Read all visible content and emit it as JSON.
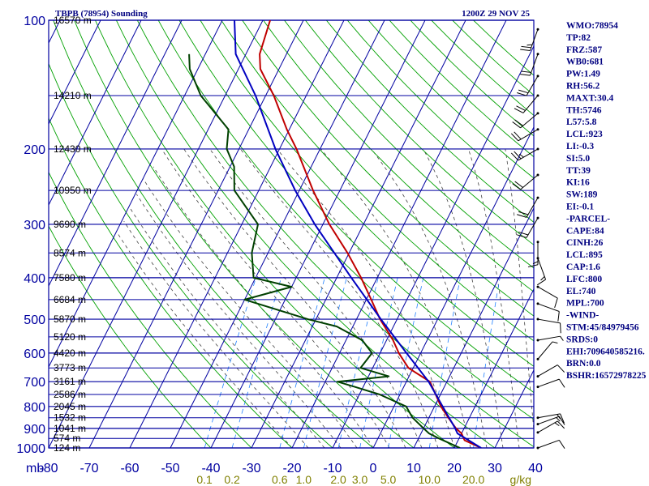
{
  "header": {
    "station_title": "TBPB (78954) Sounding",
    "valid_time": "1200Z 29 NOV 25"
  },
  "indices": [
    "WMO:78954",
    "TP:82",
    "FRZ:587",
    "WB0:681",
    "PW:1.49",
    "RH:56.2",
    "MAXT:30.4",
    "TH:5746",
    "L57:5.8",
    "LCL:923",
    "LI:-0.3",
    "SI:5.0",
    "TT:39",
    "KI:16",
    "SW:189",
    "EI:-0.1",
    "-PARCEL-",
    "CAPE:84",
    "CINH:26",
    "LCL:895",
    "CAP:1.6",
    "LFC:800",
    "EL:740",
    "MPL:700",
    "-WIND-",
    "STM:45/84979456",
    "SRDS:0",
    "EHI:709640585216.",
    "BRN:0.0",
    "BSHR:16572978225"
  ],
  "colors": {
    "isobar": "#0000a0",
    "isotherm": "#0000a0",
    "dry_adiabat": "#00a000",
    "moist_adiabat": "#404040",
    "mixing_ratio": "#2080ff",
    "temperature": "#c00000",
    "dewpoint": "#004000",
    "parcel": "#0000c0",
    "wind_barb": "#000000",
    "axis_text": "#0000a0",
    "mixing_text": "#808000",
    "index_text": "#000080"
  },
  "chart_data": {
    "type": "skew-t",
    "x_unit_label": "mb",
    "mixing_unit_label": "g/kg",
    "pressure_range": [
      1000,
      100
    ],
    "temperature_range": [
      -80,
      40
    ],
    "pressure_levels": [
      100,
      200,
      300,
      400,
      500,
      600,
      700,
      800,
      900,
      1000
    ],
    "pressure_tick_labels": [
      "100",
      "200",
      "300",
      "400",
      "500",
      "600",
      "700",
      "800",
      "900",
      "1000"
    ],
    "temperature_ticks": [
      -80,
      -70,
      -60,
      -50,
      -40,
      -30,
      -20,
      -10,
      0,
      10,
      20,
      30,
      40
    ],
    "temperature_tick_labels": [
      "-80",
      "-70",
      "-60",
      "-50",
      "-40",
      "-30",
      "-20",
      "-10",
      "0",
      "10",
      "20",
      "30",
      "40"
    ],
    "mixing_ratios": [
      0.1,
      0.2,
      0.6,
      1.0,
      2.0,
      3.0,
      5.0,
      10.0,
      20.0
    ],
    "mixing_ratio_labels": [
      "0.1",
      "0.2",
      "0.6",
      "1.0",
      "2.0",
      "3.0",
      "5.0",
      "10.0",
      "20.0"
    ],
    "height_labels": [
      {
        "p": 100,
        "text": "16570 m"
      },
      {
        "p": 150,
        "text": "14210 m"
      },
      {
        "p": 200,
        "text": "12430 m"
      },
      {
        "p": 250,
        "text": "10950 m"
      },
      {
        "p": 300,
        "text": "9690 m"
      },
      {
        "p": 350,
        "text": "8574 m"
      },
      {
        "p": 400,
        "text": "7580 m"
      },
      {
        "p": 450,
        "text": "6684 m"
      },
      {
        "p": 500,
        "text": "5870 m"
      },
      {
        "p": 550,
        "text": "5120 m"
      },
      {
        "p": 600,
        "text": "4420 m"
      },
      {
        "p": 650,
        "text": "3773 m"
      },
      {
        "p": 700,
        "text": "3161 m"
      },
      {
        "p": 750,
        "text": "2586 m"
      },
      {
        "p": 800,
        "text": "2045 m"
      },
      {
        "p": 850,
        "text": "1532 m"
      },
      {
        "p": 900,
        "text": "1041 m"
      },
      {
        "p": 950,
        "text": "574 m"
      },
      {
        "p": 1000,
        "text": "124 m"
      }
    ],
    "series": [
      {
        "name": "temperature",
        "points": [
          [
            1000,
            26.6
          ],
          [
            960,
            21.6
          ],
          [
            925,
            20.0
          ],
          [
            900,
            18.0
          ],
          [
            850,
            14.8
          ],
          [
            800,
            11.6
          ],
          [
            750,
            8.8
          ],
          [
            700,
            5.8
          ],
          [
            650,
            -1.2
          ],
          [
            600,
            -5.4
          ],
          [
            560,
            -8.4
          ],
          [
            520,
            -12.2
          ],
          [
            500,
            -14.2
          ],
          [
            450,
            -18.8
          ],
          [
            400,
            -24.0
          ],
          [
            350,
            -30.4
          ],
          [
            300,
            -38.4
          ],
          [
            250,
            -46.6
          ],
          [
            200,
            -55.8
          ],
          [
            180,
            -60.6
          ],
          [
            150,
            -68.0
          ],
          [
            130,
            -74.6
          ],
          [
            120,
            -76.6
          ],
          [
            100,
            -78.2
          ]
        ]
      },
      {
        "name": "dewpoint",
        "points": [
          [
            1000,
            21.4
          ],
          [
            950,
            15.0
          ],
          [
            925,
            12.0
          ],
          [
            900,
            10.0
          ],
          [
            850,
            6.0
          ],
          [
            800,
            3.0
          ],
          [
            750,
            -5.0
          ],
          [
            720,
            -12.0
          ],
          [
            700,
            -17.0
          ],
          [
            680,
            -5.0
          ],
          [
            650,
            -13.0
          ],
          [
            600,
            -12.0
          ],
          [
            560,
            -16.0
          ],
          [
            520,
            -24.0
          ],
          [
            500,
            -32.0
          ],
          [
            450,
            -50.0
          ],
          [
            420,
            -40.0
          ],
          [
            400,
            -50.5
          ],
          [
            350,
            -54.0
          ],
          [
            300,
            -56.0
          ],
          [
            250,
            -66.0
          ],
          [
            220,
            -69.0
          ],
          [
            200,
            -73.0
          ],
          [
            180,
            -75.0
          ],
          [
            150,
            -86.0
          ],
          [
            130,
            -92.0
          ],
          [
            120,
            -94.0
          ]
        ]
      },
      {
        "name": "parcel",
        "points": [
          [
            1000,
            26.6
          ],
          [
            925,
            19.0
          ],
          [
            900,
            17.8
          ],
          [
            850,
            15.0
          ],
          [
            800,
            12.0
          ],
          [
            700,
            5.5
          ],
          [
            600,
            -3.5
          ],
          [
            500,
            -14.0
          ],
          [
            400,
            -26.4
          ],
          [
            300,
            -42.0
          ],
          [
            250,
            -51.0
          ],
          [
            200,
            -61.0
          ],
          [
            150,
            -72.5
          ],
          [
            120,
            -82.5
          ],
          [
            100,
            -87.0
          ]
        ]
      }
    ],
    "wind_barbs": [
      {
        "p": 105,
        "dir": 200,
        "kt": 25
      },
      {
        "p": 120,
        "dir": 200,
        "kt": 20
      },
      {
        "p": 135,
        "dir": 210,
        "kt": 20
      },
      {
        "p": 150,
        "dir": 220,
        "kt": 20
      },
      {
        "p": 165,
        "dir": 230,
        "kt": 20
      },
      {
        "p": 180,
        "dir": 240,
        "kt": 20
      },
      {
        "p": 200,
        "dir": 240,
        "kt": 25
      },
      {
        "p": 230,
        "dir": 230,
        "kt": 20
      },
      {
        "p": 260,
        "dir": 210,
        "kt": 20
      },
      {
        "p": 290,
        "dir": 210,
        "kt": 20
      },
      {
        "p": 330,
        "dir": 180,
        "kt": 15
      },
      {
        "p": 360,
        "dir": 160,
        "kt": 15
      },
      {
        "p": 420,
        "dir": 120,
        "kt": 10
      },
      {
        "p": 460,
        "dir": 110,
        "kt": 10
      },
      {
        "p": 500,
        "dir": 100,
        "kt": 10
      },
      {
        "p": 560,
        "dir": 80,
        "kt": 5
      },
      {
        "p": 620,
        "dir": 40,
        "kt": 5
      },
      {
        "p": 680,
        "dir": 60,
        "kt": 10
      },
      {
        "p": 720,
        "dir": 70,
        "kt": 10
      },
      {
        "p": 850,
        "dir": 80,
        "kt": 15
      },
      {
        "p": 880,
        "dir": 70,
        "kt": 15
      },
      {
        "p": 920,
        "dir": 60,
        "kt": 15
      },
      {
        "p": 1000,
        "dir": 70,
        "kt": 10
      }
    ],
    "grid": true,
    "legend": "none"
  }
}
